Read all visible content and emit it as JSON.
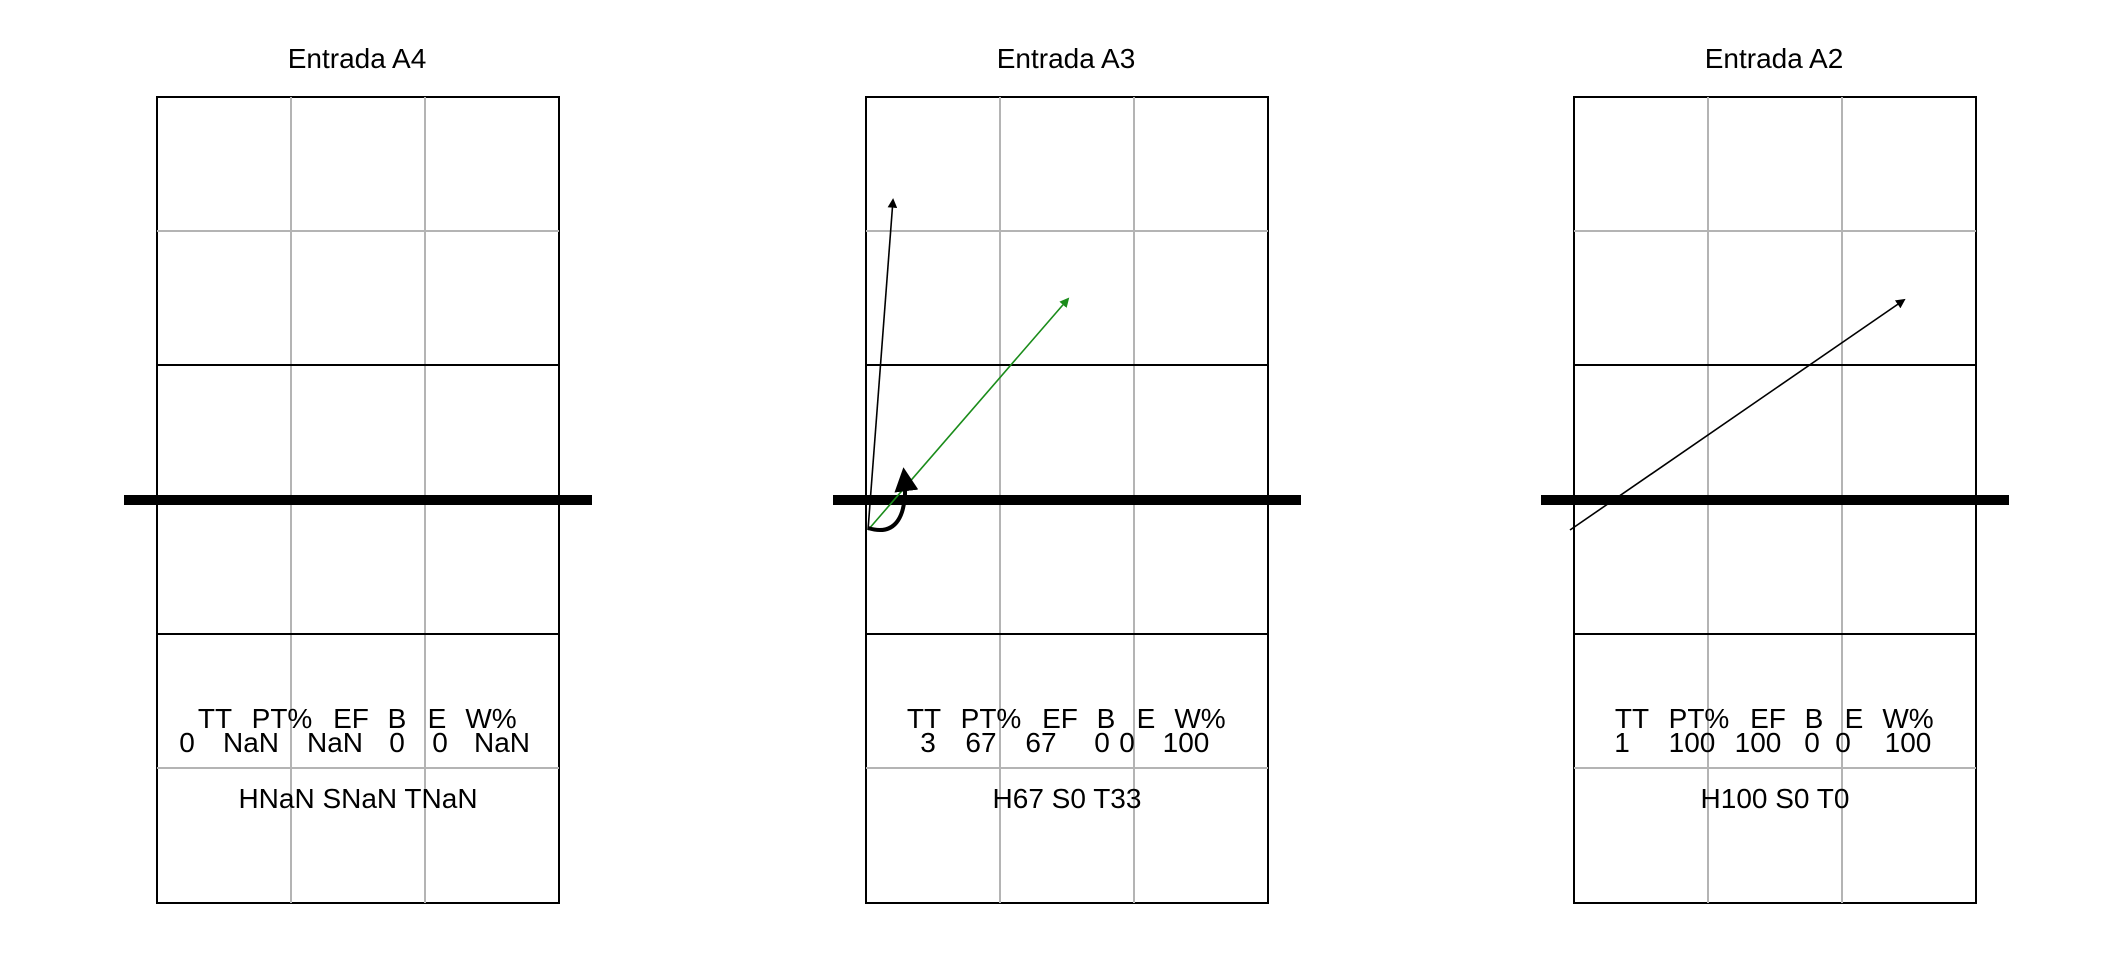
{
  "panels": [
    {
      "title": "Entrada A4",
      "stats_header": [
        "TT",
        "PT%",
        "EF",
        "B",
        "E",
        "W%"
      ],
      "stats_values": [
        "0",
        "NaN",
        "NaN",
        "0",
        "0",
        "NaN"
      ],
      "summary": "HNaN SNaN TNaN",
      "arrows": []
    },
    {
      "title": "Entrada A3",
      "stats_header": [
        "TT",
        "PT%",
        "EF",
        "B",
        "E",
        "W%"
      ],
      "stats_values": [
        "3",
        "67",
        "67",
        "0",
        "0",
        "100"
      ],
      "summary": "H67 S0 T33",
      "arrows": [
        {
          "kind": "straight",
          "color": "#000000"
        },
        {
          "kind": "straight",
          "color": "#1a8c1a"
        },
        {
          "kind": "curved",
          "color": "#000000"
        }
      ]
    },
    {
      "title": "Entrada A2",
      "stats_header": [
        "TT",
        "PT%",
        "EF",
        "B",
        "E",
        "W%"
      ],
      "stats_values": [
        "1",
        "100",
        "100",
        "0",
        "0",
        "100"
      ],
      "summary": "H100 S0 T0",
      "arrows": [
        {
          "kind": "straight",
          "color": "#000000"
        }
      ]
    }
  ]
}
